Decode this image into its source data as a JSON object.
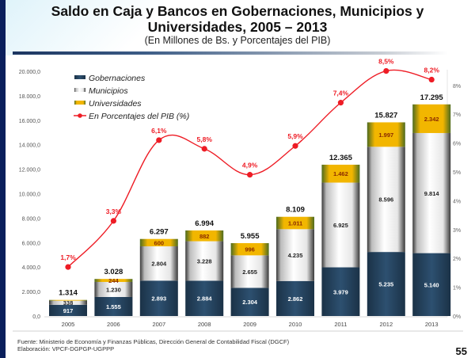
{
  "page": {
    "title_line1": "Saldo en Caja y Bancos en Gobernaciones, Municipios y",
    "title_line2": "Universidades, 2005 – 2013",
    "subtitle": "(En Millones de Bs. y Porcentajes del PIB)",
    "source": "Fuente: Ministerio de Economía y Finanzas Públicas, Dirección General de Contabilidad Fiscal (DGCF)",
    "elaboration": "Elaboración: VPCF-DGPGP-UGPPP",
    "page_number": "55"
  },
  "chart_data": {
    "type": "bar",
    "stacked": true,
    "title": "Saldo en Caja y Bancos en Gobernaciones, Municipios y Universidades, 2005 – 2013",
    "subtitle": "(En Millones de Bs. y Porcentajes del PIB)",
    "categories": [
      "2005",
      "2006",
      "2007",
      "2008",
      "2009",
      "2010",
      "2011",
      "2012",
      "2013"
    ],
    "series": [
      {
        "name": "Gobernaciones",
        "color": "#25435e",
        "values": [
          917,
          1555,
          2893,
          2884,
          2304,
          2862,
          3979,
          5235,
          5140
        ],
        "labels": [
          "917",
          "1.555",
          "2.893",
          "2.884",
          "2.304",
          "2.862",
          "3.979",
          "5.235",
          "5.140"
        ]
      },
      {
        "name": "Municipios",
        "color": "#f4f4f4",
        "values": [
          338,
          1230,
          2804,
          3228,
          2655,
          4235,
          6925,
          8596,
          9814
        ],
        "labels": [
          "338",
          "1.230",
          "2.804",
          "3.228",
          "2.655",
          "4.235",
          "6.925",
          "8.596",
          "9.814"
        ]
      },
      {
        "name": "Universidades",
        "color": "#f0b800",
        "values": [
          59,
          244,
          600,
          882,
          996,
          1011,
          1462,
          1997,
          2342
        ],
        "labels": [
          "",
          "244",
          "600",
          "882",
          "996",
          "1.011",
          "1.462",
          "1.997",
          "2.342"
        ]
      }
    ],
    "totals": {
      "values": [
        1314,
        3028,
        6297,
        6994,
        5955,
        8109,
        12365,
        15827,
        17295
      ],
      "labels": [
        "1.314",
        "3.028",
        "6.297",
        "6.994",
        "5.955",
        "8.109",
        "12.365",
        "15.827",
        "17.295"
      ]
    },
    "line_series": {
      "name": "En Porcentajes del PIB (%)",
      "color": "#ee1c25",
      "axis": "right",
      "values": [
        1.7,
        3.3,
        6.1,
        5.8,
        4.9,
        5.9,
        7.4,
        8.5,
        8.2
      ],
      "labels": [
        "1,7%",
        "3,3%",
        "6,1%",
        "5,8%",
        "4,9%",
        "5,9%",
        "7,4%",
        "8,5%",
        "8,2%"
      ]
    },
    "y_left": {
      "range": [
        0,
        20000
      ],
      "ticks": [
        "0,0",
        "2.000,0",
        "4.000,0",
        "6.000,0",
        "8.000,0",
        "10.000,0",
        "12.000,0",
        "14.000,0",
        "16.000,0",
        "18.000,0",
        "20.000,0"
      ]
    },
    "y_right": {
      "range": [
        0,
        8.5
      ],
      "ticks": [
        "0%",
        "1%",
        "2%",
        "3%",
        "4%",
        "5%",
        "6%",
        "7%",
        "8%"
      ]
    },
    "legend": {
      "placement": "top-left",
      "entries": [
        "Gobernaciones",
        "Municipios",
        "Universidades",
        "En Porcentajes del PIB (%)"
      ]
    },
    "grid": false
  }
}
